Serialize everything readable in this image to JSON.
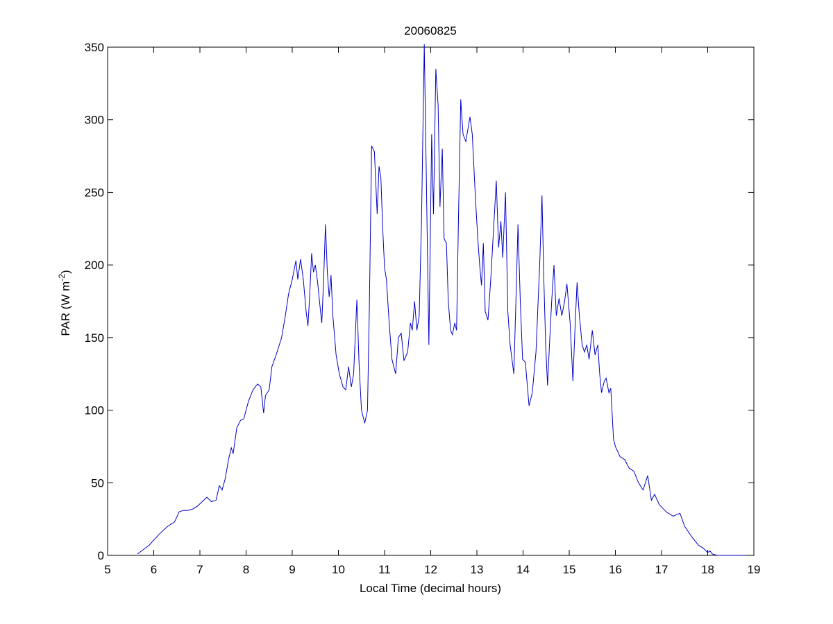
{
  "chart_data": {
    "type": "line",
    "title": "20060825",
    "xlabel": "Local Time (decimal hours)",
    "ylabel": {
      "text": "PAR (W m",
      "sup": "-2",
      "end": ")"
    },
    "xlim": [
      5,
      19
    ],
    "xticks": [
      5,
      6,
      7,
      8,
      9,
      10,
      11,
      12,
      13,
      14,
      15,
      16,
      17,
      18,
      19
    ],
    "ylim": [
      0,
      350
    ],
    "yticks": [
      0,
      50,
      100,
      150,
      200,
      250,
      300,
      350
    ],
    "series": [
      {
        "color": "#0000c8",
        "x": [
          5.65,
          5.9,
          6.1,
          6.3,
          6.45,
          6.55,
          6.65,
          6.75,
          6.85,
          6.95,
          7.05,
          7.15,
          7.25,
          7.35,
          7.42,
          7.48,
          7.55,
          7.62,
          7.68,
          7.72,
          7.8,
          7.88,
          7.95,
          8.05,
          8.15,
          8.25,
          8.32,
          8.38,
          8.42,
          8.5,
          8.56,
          8.65,
          8.77,
          8.85,
          8.92,
          9.0,
          9.08,
          9.12,
          9.18,
          9.24,
          9.3,
          9.34,
          9.38,
          9.42,
          9.46,
          9.5,
          9.55,
          9.6,
          9.64,
          9.68,
          9.72,
          9.76,
          9.8,
          9.84,
          9.88,
          9.95,
          10.02,
          10.1,
          10.16,
          10.22,
          10.28,
          10.33,
          10.4,
          10.45,
          10.5,
          10.57,
          10.63,
          10.67,
          10.72,
          10.78,
          10.84,
          10.88,
          10.92,
          10.96,
          11.0,
          11.04,
          11.1,
          11.16,
          11.24,
          11.3,
          11.36,
          11.42,
          11.5,
          11.56,
          11.6,
          11.65,
          11.7,
          11.75,
          11.8,
          11.86,
          11.9,
          11.96,
          12.02,
          12.06,
          12.11,
          12.16,
          12.2,
          12.25,
          12.29,
          12.34,
          12.38,
          12.43,
          12.47,
          12.52,
          12.56,
          12.6,
          12.65,
          12.7,
          12.76,
          12.85,
          12.9,
          12.97,
          13.02,
          13.06,
          13.1,
          13.14,
          13.18,
          13.24,
          13.3,
          13.42,
          13.47,
          13.52,
          13.56,
          13.62,
          13.67,
          13.72,
          13.8,
          13.85,
          13.89,
          13.94,
          13.99,
          14.05,
          14.13,
          14.2,
          14.28,
          14.36,
          14.41,
          14.45,
          14.49,
          14.53,
          14.58,
          14.62,
          14.67,
          14.72,
          14.78,
          14.84,
          14.9,
          14.95,
          15.02,
          15.08,
          15.13,
          15.17,
          15.22,
          15.28,
          15.33,
          15.38,
          15.43,
          15.5,
          15.56,
          15.62,
          15.66,
          15.7,
          15.76,
          15.8,
          15.86,
          15.9,
          15.96,
          16.0,
          16.1,
          16.2,
          16.3,
          16.4,
          16.5,
          16.6,
          16.7,
          16.78,
          16.85,
          16.95,
          17.1,
          17.25,
          17.4,
          17.5,
          17.65,
          17.8,
          17.9,
          18.0,
          18.05,
          18.1,
          18.2,
          18.4,
          18.6,
          18.83
        ],
        "values": [
          1,
          7,
          14,
          20,
          23,
          30,
          31,
          31,
          32,
          34,
          37,
          40,
          37,
          38,
          48,
          45,
          53,
          66,
          74,
          70,
          88,
          93,
          94,
          106,
          114,
          118,
          116,
          98,
          110,
          114,
          130,
          138,
          150,
          165,
          180,
          190,
          203,
          190,
          204,
          190,
          168,
          158,
          180,
          208,
          195,
          200,
          188,
          172,
          160,
          190,
          228,
          195,
          178,
          193,
          165,
          138,
          125,
          116,
          114,
          130,
          116,
          125,
          176,
          130,
          100,
          91,
          100,
          170,
          282,
          278,
          235,
          268,
          260,
          225,
          198,
          190,
          160,
          135,
          125,
          150,
          153,
          134,
          140,
          160,
          155,
          175,
          155,
          165,
          230,
          352,
          270,
          145,
          290,
          235,
          335,
          310,
          240,
          280,
          218,
          215,
          175,
          155,
          152,
          160,
          155,
          230,
          314,
          290,
          285,
          302,
          290,
          245,
          218,
          200,
          186,
          215,
          168,
          162,
          190,
          258,
          212,
          230,
          205,
          250,
          168,
          145,
          125,
          180,
          228,
          175,
          135,
          133,
          103,
          112,
          140,
          200,
          248,
          190,
          145,
          117,
          150,
          175,
          200,
          165,
          177,
          165,
          175,
          187,
          160,
          120,
          160,
          188,
          165,
          145,
          140,
          145,
          135,
          155,
          138,
          145,
          125,
          112,
          120,
          122,
          112,
          115,
          80,
          75,
          68,
          66,
          60,
          58,
          50,
          45,
          55,
          38,
          42,
          35,
          30,
          27,
          29,
          20,
          13,
          7,
          5,
          2,
          3,
          1,
          0,
          0,
          0,
          0
        ]
      }
    ]
  }
}
